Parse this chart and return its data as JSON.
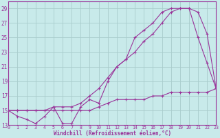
{
  "xlabel": "Windchill (Refroidissement éolien,°C)",
  "background_color": "#c8eaea",
  "line_color": "#993399",
  "grid_color": "#a8cccc",
  "xlim_min": 0,
  "xlim_max": 23,
  "ylim_min": 13,
  "ylim_max": 30,
  "xticks": [
    0,
    1,
    2,
    3,
    4,
    5,
    6,
    7,
    8,
    9,
    10,
    11,
    12,
    13,
    14,
    15,
    16,
    17,
    18,
    19,
    20,
    21,
    22,
    23
  ],
  "yticks": [
    13,
    15,
    17,
    19,
    21,
    23,
    25,
    27,
    29
  ],
  "line1_x": [
    0,
    1,
    2,
    3,
    4,
    5,
    6,
    7,
    8,
    9,
    10,
    11,
    12,
    13,
    14,
    15,
    16,
    17,
    18,
    19,
    20,
    21,
    22,
    23
  ],
  "line1_y": [
    15,
    14.2,
    13.8,
    13.2,
    14.2,
    15.5,
    13.2,
    13.2,
    15.5,
    16.5,
    16,
    19,
    21,
    22,
    25,
    26,
    27,
    28.5,
    29,
    29,
    29,
    25,
    21.5,
    18
  ],
  "line2_x": [
    0,
    1,
    2,
    3,
    4,
    5,
    6,
    7,
    8,
    9,
    10,
    11,
    12,
    13,
    14,
    15,
    16,
    17,
    18,
    19,
    20,
    21,
    22,
    23
  ],
  "line2_y": [
    15,
    15,
    15,
    15,
    15,
    15.5,
    15.5,
    15.5,
    16,
    17,
    18,
    19.5,
    21,
    22,
    23,
    24.5,
    25.5,
    27,
    28.5,
    29,
    29,
    28.5,
    25.5,
    18
  ],
  "line3_x": [
    0,
    1,
    2,
    3,
    4,
    5,
    6,
    7,
    8,
    9,
    10,
    11,
    12,
    13,
    14,
    15,
    16,
    17,
    18,
    19,
    20,
    21,
    22,
    23
  ],
  "line3_y": [
    15,
    15,
    15,
    15,
    15,
    15,
    15,
    15,
    15,
    15,
    15.5,
    16,
    16.5,
    16.5,
    16.5,
    16.5,
    17,
    17,
    17.5,
    17.5,
    17.5,
    17.5,
    17.5,
    18
  ]
}
